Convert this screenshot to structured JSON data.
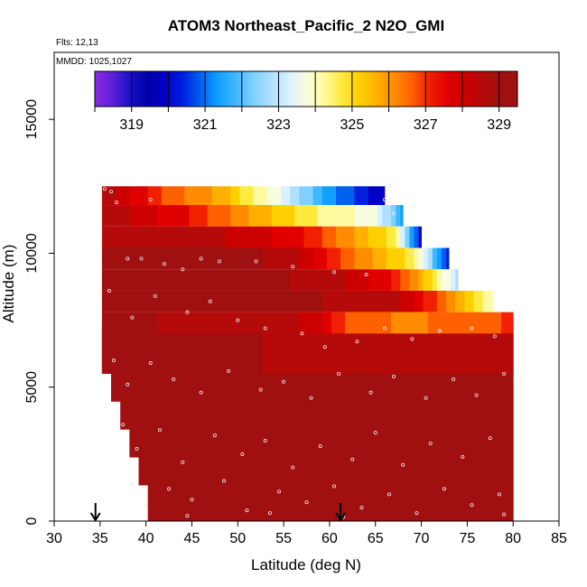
{
  "chart_data": {
    "type": "heatmap",
    "title": "ATOM3 Northeast_Pacific_2 N2O_GMI",
    "flights_label": "Flts: 12,13",
    "dates_label": "MMDD: 1025,1027",
    "xlabel": "Latitude (deg N)",
    "ylabel": "Altitude (m)",
    "xlim": [
      30,
      85
    ],
    "ylim": [
      0,
      17500
    ],
    "x_ticks": [
      "30",
      "35",
      "40",
      "45",
      "50",
      "55",
      "60",
      "65",
      "70",
      "75",
      "80",
      "85"
    ],
    "y_ticks": [
      "0",
      "5000",
      "10000",
      "15000"
    ],
    "colorbar": {
      "range": [
        318,
        329.5
      ],
      "tick_labels": [
        "319",
        "321",
        "323",
        "325",
        "327",
        "329"
      ],
      "tick_values": [
        319,
        321,
        323,
        325,
        327,
        329
      ],
      "colors": [
        "#8a2be2",
        "#5a20d8",
        "#1a10c8",
        "#0000a8",
        "#0000c8",
        "#0020e0",
        "#0060f0",
        "#10a0ff",
        "#40b8ff",
        "#80d0ff",
        "#b0e0ff",
        "#d8f0ff",
        "#f8fde0",
        "#fffaa0",
        "#ffea40",
        "#ffd000",
        "#ffb000",
        "#ff8c00",
        "#ff6000",
        "#f02000",
        "#e00000",
        "#cc0000",
        "#b40a0a",
        "#a01010"
      ]
    },
    "background_value": 329.2,
    "profile_columns": [
      {
        "x": 35.2,
        "top": 12500,
        "bottom": 5500
      },
      {
        "x": 40.0,
        "top": 11800,
        "bottom": 1000
      },
      {
        "x": 50.0,
        "top": 10800,
        "bottom": 1000
      },
      {
        "x": 60.0,
        "top": 10300,
        "bottom": 1000
      },
      {
        "x": 66.0,
        "top": 12000,
        "bottom": 1000
      },
      {
        "x": 71.0,
        "top": 10500,
        "bottom": 1000
      },
      {
        "x": 75.0,
        "top": 9000,
        "bottom": 1000
      },
      {
        "x": 80.0,
        "top": 7400,
        "bottom": 1000
      }
    ],
    "layers": [
      {
        "name": "upper",
        "y_top": 12500,
        "y_bottom": 11800,
        "x_start": 35.2,
        "x_end": 66.0,
        "stops": [
          [
            35.2,
            329.0
          ],
          [
            42,
            327.0
          ],
          [
            48,
            326.0
          ],
          [
            54,
            324.0
          ],
          [
            60,
            321.5
          ],
          [
            66,
            320.0
          ]
        ]
      },
      {
        "name": "mid-upper",
        "y_top": 11800,
        "y_bottom": 11000,
        "x_start": 35.2,
        "x_end": 68.0,
        "stops": [
          [
            35.2,
            329.0
          ],
          [
            45,
            327.5
          ],
          [
            52,
            326.0
          ],
          [
            60,
            324.5
          ],
          [
            65,
            324.0
          ],
          [
            68,
            321.5
          ]
        ]
      },
      {
        "name": "band3",
        "y_top": 11000,
        "y_bottom": 10200,
        "x_start": 35.2,
        "x_end": 70.0,
        "stops": [
          [
            35.2,
            329.0
          ],
          [
            50,
            328.5
          ],
          [
            58,
            327.5
          ],
          [
            63,
            326.0
          ],
          [
            67,
            325.0
          ],
          [
            70,
            320.0
          ]
        ]
      },
      {
        "name": "band4",
        "y_top": 10200,
        "y_bottom": 9400,
        "x_start": 35.2,
        "x_end": 73.0,
        "stops": [
          [
            35.2,
            329.2
          ],
          [
            55,
            329.0
          ],
          [
            60,
            327.5
          ],
          [
            65,
            326.0
          ],
          [
            69,
            325.0
          ],
          [
            73,
            320.5
          ]
        ]
      },
      {
        "name": "band5",
        "y_top": 9400,
        "y_bottom": 8600,
        "x_start": 35.2,
        "x_end": 74.0,
        "stops": [
          [
            35.2,
            329.2
          ],
          [
            58,
            329.0
          ],
          [
            62,
            328.5
          ],
          [
            67,
            327.5
          ],
          [
            70,
            326.0
          ],
          [
            74,
            323.0
          ]
        ]
      },
      {
        "name": "band6",
        "y_top": 8600,
        "y_bottom": 7800,
        "x_start": 35.2,
        "x_end": 78.0,
        "stops": [
          [
            35.2,
            329.2
          ],
          [
            62,
            329.0
          ],
          [
            68,
            328.5
          ],
          [
            72,
            327.0
          ],
          [
            75,
            325.5
          ],
          [
            78,
            324.0
          ]
        ]
      },
      {
        "name": "band7",
        "y_top": 7800,
        "y_bottom": 7000,
        "x_start": 35.2,
        "x_end": 80.0,
        "stops": [
          [
            35.2,
            329.2
          ],
          [
            58,
            328.5
          ],
          [
            62,
            327.0
          ],
          [
            68,
            326.5
          ],
          [
            74,
            326.8
          ],
          [
            80,
            327.2
          ]
        ]
      },
      {
        "name": "band8",
        "y_top": 7000,
        "y_bottom": 5500,
        "x_start": 35.2,
        "x_end": 80.0,
        "stops": [
          [
            35.2,
            329.2
          ],
          [
            55,
            329.0
          ],
          [
            62,
            328.6
          ],
          [
            70,
            328.8
          ],
          [
            80,
            329.0
          ]
        ]
      }
    ],
    "markers": [
      {
        "label": "↓",
        "x": 34.5
      },
      {
        "label": "↓",
        "x": 61.2
      }
    ],
    "samples": [
      [
        35.5,
        12400
      ],
      [
        36.2,
        12300
      ],
      [
        36.8,
        11900
      ],
      [
        40.5,
        12000
      ],
      [
        38.0,
        9800
      ],
      [
        39.5,
        9800
      ],
      [
        42.0,
        9600
      ],
      [
        44.0,
        9400
      ],
      [
        46.0,
        9800
      ],
      [
        48.0,
        9700
      ],
      [
        52.0,
        9700
      ],
      [
        56.0,
        9500
      ],
      [
        60.5,
        9300
      ],
      [
        64.0,
        9200
      ],
      [
        66.0,
        12000
      ],
      [
        69.0,
        10000
      ],
      [
        72.0,
        9100
      ],
      [
        66.5,
        12500
      ],
      [
        67.0,
        11500
      ],
      [
        36.0,
        8600
      ],
      [
        38.5,
        7600
      ],
      [
        41.0,
        8400
      ],
      [
        44.5,
        7800
      ],
      [
        47.0,
        8200
      ],
      [
        50.0,
        7500
      ],
      [
        53.0,
        7200
      ],
      [
        57.0,
        7000
      ],
      [
        59.5,
        6500
      ],
      [
        63.0,
        6700
      ],
      [
        66.0,
        7200
      ],
      [
        69.0,
        6800
      ],
      [
        72.0,
        7100
      ],
      [
        75.5,
        7200
      ],
      [
        78.0,
        6900
      ],
      [
        36.5,
        6000
      ],
      [
        38.0,
        5100
      ],
      [
        40.5,
        5900
      ],
      [
        43.0,
        5300
      ],
      [
        46.0,
        4800
      ],
      [
        49.0,
        5600
      ],
      [
        52.5,
        4900
      ],
      [
        55.0,
        5200
      ],
      [
        58.0,
        4600
      ],
      [
        61.0,
        5500
      ],
      [
        64.5,
        4800
      ],
      [
        67.0,
        5400
      ],
      [
        70.5,
        4600
      ],
      [
        73.5,
        5300
      ],
      [
        76.0,
        4700
      ],
      [
        79.0,
        5500
      ],
      [
        37.5,
        3600
      ],
      [
        39.0,
        2700
      ],
      [
        41.5,
        3400
      ],
      [
        44.0,
        2200
      ],
      [
        47.5,
        3200
      ],
      [
        50.5,
        2500
      ],
      [
        53.0,
        3000
      ],
      [
        56.0,
        2000
      ],
      [
        59.0,
        2800
      ],
      [
        62.5,
        2300
      ],
      [
        65.0,
        3300
      ],
      [
        68.0,
        2100
      ],
      [
        71.0,
        2900
      ],
      [
        74.5,
        2400
      ],
      [
        77.5,
        3100
      ],
      [
        38.5,
        1400
      ],
      [
        40.0,
        600
      ],
      [
        42.5,
        1200
      ],
      [
        45.0,
        800
      ],
      [
        48.5,
        1500
      ],
      [
        51.0,
        400
      ],
      [
        54.5,
        1100
      ],
      [
        57.5,
        700
      ],
      [
        60.5,
        1300
      ],
      [
        63.5,
        500
      ],
      [
        66.5,
        1000
      ],
      [
        69.5,
        300
      ],
      [
        72.5,
        1200
      ],
      [
        75.5,
        600
      ],
      [
        78.5,
        1000
      ],
      [
        79.0,
        250
      ],
      [
        44.5,
        200
      ],
      [
        53.5,
        300
      ],
      [
        61.5,
        150
      ]
    ]
  }
}
